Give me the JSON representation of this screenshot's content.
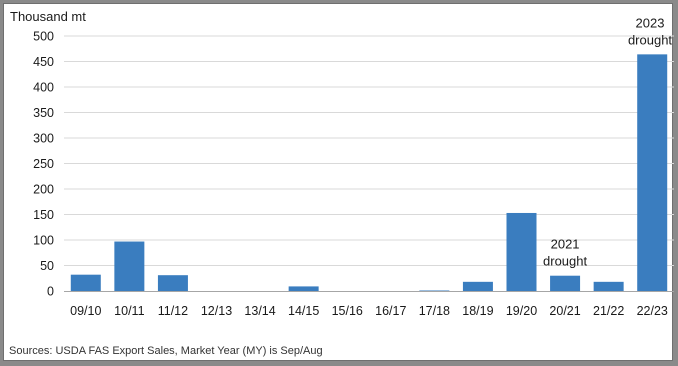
{
  "chart_data": {
    "type": "bar",
    "title": "",
    "ylabel": "Thousand mt",
    "xlabel": "",
    "ylim": [
      0,
      500
    ],
    "yticks": [
      0,
      50,
      100,
      150,
      200,
      250,
      300,
      350,
      400,
      450,
      500
    ],
    "grid": true,
    "bar_color": "#3a7dbf",
    "categories": [
      "09/10",
      "10/11",
      "11/12",
      "12/13",
      "13/14",
      "14/15",
      "15/16",
      "16/17",
      "17/18",
      "18/19",
      "19/20",
      "20/21",
      "21/22",
      "22/23"
    ],
    "values": [
      32,
      97,
      31,
      0,
      0,
      9,
      0,
      0,
      1,
      18,
      153,
      30,
      18,
      464
    ],
    "annotations": [
      {
        "category": "20/21",
        "lines": [
          "2021",
          "drought"
        ]
      },
      {
        "category": "22/23",
        "lines": [
          "2023",
          "drought"
        ]
      }
    ]
  },
  "source_note": "Sources: USDA FAS Export Sales, Market Year (MY) is Sep/Aug"
}
